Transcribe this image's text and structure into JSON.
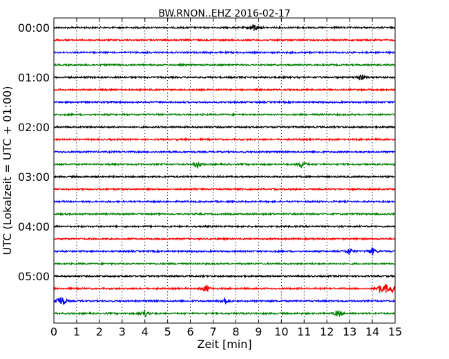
{
  "chart_data": {
    "type": "line",
    "title": "BW.RNON..EHZ 2016-02-17",
    "xlabel": "Zeit  [min]",
    "ylabel": "UTC (Lokalzeit = UTC + 01:00)",
    "xlim": [
      0,
      15
    ],
    "x_ticks": [
      0,
      1,
      2,
      3,
      4,
      5,
      6,
      7,
      8,
      9,
      10,
      11,
      12,
      13,
      14,
      15
    ],
    "x_tick_labels": [
      "0",
      "1",
      "2",
      "3",
      "4",
      "5",
      "6",
      "7",
      "8",
      "9",
      "10",
      "11",
      "12",
      "13",
      "14",
      "15"
    ],
    "y_tick_labels": [
      "00:00",
      "01:00",
      "02:00",
      "03:00",
      "04:00",
      "05:00"
    ],
    "grid": "vertical dotted",
    "trace_interval_minutes": 15,
    "colors": [
      "#000000",
      "#ff0000",
      "#0000ff",
      "#008000"
    ],
    "traces": [
      {
        "start": "00:00",
        "color": "#000000",
        "events_min": [
          8.8
        ]
      },
      {
        "start": "00:15",
        "color": "#ff0000",
        "events_min": []
      },
      {
        "start": "00:30",
        "color": "#0000ff",
        "events_min": []
      },
      {
        "start": "00:45",
        "color": "#008000",
        "events_min": []
      },
      {
        "start": "01:00",
        "color": "#000000",
        "events_min": [
          13.5
        ]
      },
      {
        "start": "01:15",
        "color": "#ff0000",
        "events_min": []
      },
      {
        "start": "01:30",
        "color": "#0000ff",
        "events_min": []
      },
      {
        "start": "01:45",
        "color": "#008000",
        "events_min": []
      },
      {
        "start": "02:00",
        "color": "#000000",
        "events_min": []
      },
      {
        "start": "02:15",
        "color": "#ff0000",
        "events_min": []
      },
      {
        "start": "02:30",
        "color": "#0000ff",
        "events_min": []
      },
      {
        "start": "02:45",
        "color": "#008000",
        "events_min": [
          6.3,
          10.9
        ]
      },
      {
        "start": "03:00",
        "color": "#000000",
        "events_min": []
      },
      {
        "start": "03:15",
        "color": "#ff0000",
        "events_min": []
      },
      {
        "start": "03:30",
        "color": "#0000ff",
        "events_min": []
      },
      {
        "start": "03:45",
        "color": "#008000",
        "events_min": []
      },
      {
        "start": "04:00",
        "color": "#000000",
        "events_min": []
      },
      {
        "start": "04:15",
        "color": "#ff0000",
        "events_min": []
      },
      {
        "start": "04:30",
        "color": "#0000ff",
        "events_min": [
          13.0,
          14.0
        ]
      },
      {
        "start": "04:45",
        "color": "#008000",
        "events_min": []
      },
      {
        "start": "05:00",
        "color": "#000000",
        "events_min": []
      },
      {
        "start": "05:15",
        "color": "#ff0000",
        "events_min": [
          6.7,
          14.3,
          14.6,
          14.9
        ]
      },
      {
        "start": "05:30",
        "color": "#0000ff",
        "events_min": [
          0.2,
          0.4,
          7.5
        ]
      },
      {
        "start": "05:45",
        "color": "#008000",
        "events_min": [
          4.0,
          12.5
        ]
      }
    ]
  }
}
